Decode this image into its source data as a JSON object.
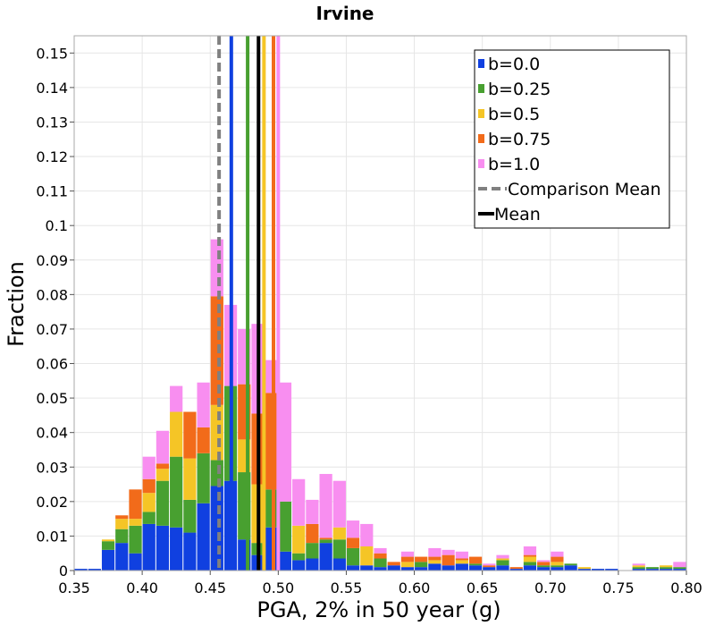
{
  "chart_data": {
    "type": "bar",
    "stacked": true,
    "title": "Irvine",
    "xlabel": "PGA, 2% in 50 year (g)",
    "ylabel": "Fraction",
    "xlim": [
      0.35,
      0.8
    ],
    "ylim": [
      0,
      0.155
    ],
    "xticks": [
      "0.35",
      "0.40",
      "0.45",
      "0.50",
      "0.55",
      "0.60",
      "0.65",
      "0.70",
      "0.75",
      "0.80"
    ],
    "xtick_values": [
      0.35,
      0.4,
      0.45,
      0.5,
      0.55,
      0.6,
      0.65,
      0.7,
      0.75,
      0.8
    ],
    "yticks": [
      "0",
      "0.01",
      "0.02",
      "0.03",
      "0.04",
      "0.05",
      "0.06",
      "0.07",
      "0.08",
      "0.09",
      "0.1",
      "0.11",
      "0.12",
      "0.13",
      "0.14",
      "0.15"
    ],
    "ytick_values": [
      0,
      0.01,
      0.02,
      0.03,
      0.04,
      0.05,
      0.06,
      0.07,
      0.08,
      0.09,
      0.1,
      0.11,
      0.12,
      0.13,
      0.14,
      0.15
    ],
    "grid": true,
    "legend_position": "top-right",
    "bin_width": 0.01,
    "bin_centers": [
      0.355,
      0.365,
      0.375,
      0.385,
      0.395,
      0.405,
      0.415,
      0.425,
      0.435,
      0.445,
      0.455,
      0.465,
      0.475,
      0.485,
      0.495,
      0.505,
      0.515,
      0.525,
      0.535,
      0.545,
      0.555,
      0.565,
      0.575,
      0.585,
      0.595,
      0.605,
      0.615,
      0.625,
      0.635,
      0.645,
      0.655,
      0.665,
      0.675,
      0.685,
      0.695,
      0.705,
      0.715,
      0.725,
      0.735,
      0.745,
      0.755,
      0.765,
      0.775,
      0.785,
      0.795
    ],
    "series": [
      {
        "name": "b=0.0",
        "color": "#1040e0",
        "values": [
          0.0005,
          0.0005,
          0.006,
          0.008,
          0.005,
          0.0135,
          0.013,
          0.0125,
          0.011,
          0.0195,
          0.0245,
          0.026,
          0.009,
          0.0045,
          0.0125,
          0.0055,
          0.003,
          0.0035,
          0.008,
          0.0035,
          0.0015,
          0.0015,
          0.001,
          0.0015,
          0.001,
          0.001,
          0.002,
          0.0015,
          0.002,
          0.0015,
          0.001,
          0.0015,
          0.0005,
          0.0015,
          0.001,
          0.001,
          0.0015,
          0.0005,
          0.0005,
          0.0005,
          0.0,
          0.0005,
          0.0005,
          0.0005,
          0.0005
        ]
      },
      {
        "name": "b=0.25",
        "color": "#48a030",
        "values": [
          0.0,
          0.0,
          0.0025,
          0.004,
          0.008,
          0.0035,
          0.013,
          0.0205,
          0.0095,
          0.0145,
          0.0075,
          0.0275,
          0.0195,
          0.0035,
          0.011,
          0.0145,
          0.002,
          0.0045,
          0.001,
          0.0055,
          0.005,
          0.0,
          0.0025,
          0.0,
          0.0,
          0.0015,
          0.0,
          0.0,
          0.0,
          0.0005,
          0.0,
          0.0015,
          0.0,
          0.001,
          0.0005,
          0.0005,
          0.0005,
          0.0,
          0.0,
          0.0,
          0.0,
          0.0005,
          0.0005,
          0.0005,
          0.0005
        ]
      },
      {
        "name": "b=0.5",
        "color": "#f5c526",
        "values": [
          0.0,
          0.0,
          0.0005,
          0.003,
          0.002,
          0.0055,
          0.0035,
          0.013,
          0.012,
          0.0,
          0.016,
          0.0,
          0.0095,
          0.017,
          0.0,
          0.0,
          0.008,
          0.0,
          0.0,
          0.0035,
          0.0,
          0.0055,
          0.0,
          0.0,
          0.0015,
          0.0,
          0.001,
          0.0,
          0.001,
          0.0,
          0.0,
          0.0005,
          0.0,
          0.0015,
          0.0,
          0.001,
          0.0,
          0.0005,
          0.0,
          0.0,
          0.0,
          0.0005,
          0.0,
          0.0005,
          0.0
        ]
      },
      {
        "name": "b=0.75",
        "color": "#f26b1a",
        "values": [
          0.0,
          0.0,
          0.0,
          0.001,
          0.0085,
          0.004,
          0.0015,
          0.0,
          0.0135,
          0.0075,
          0.0315,
          0.0,
          0.016,
          0.0205,
          0.028,
          0.0,
          0.0,
          0.0055,
          0.0005,
          0.0,
          0.003,
          0.0,
          0.0015,
          0.001,
          0.0015,
          0.0015,
          0.001,
          0.003,
          0.0005,
          0.002,
          0.0005,
          0.0,
          0.0005,
          0.0005,
          0.001,
          0.0015,
          0.0,
          0.0,
          0.0,
          0.0,
          0.0,
          0.0,
          0.0,
          0.0,
          0.0
        ]
      },
      {
        "name": "b=1.0",
        "color": "#f88ef0",
        "values": [
          0.0,
          0.0,
          0.0,
          0.0,
          0.0,
          0.0065,
          0.0095,
          0.0075,
          0.0,
          0.013,
          0.0165,
          0.0235,
          0.016,
          0.026,
          0.0095,
          0.0345,
          0.0135,
          0.007,
          0.0185,
          0.0135,
          0.005,
          0.0065,
          0.0015,
          0.0,
          0.0015,
          0.0,
          0.0025,
          0.0015,
          0.002,
          0.0,
          0.0005,
          0.001,
          0.0,
          0.0025,
          0.0005,
          0.0015,
          0.0,
          0.0,
          0.0,
          0.0,
          0.0,
          0.0005,
          0.0,
          0.0,
          0.0015
        ]
      }
    ],
    "mean_lines": [
      {
        "series": "b=0.0",
        "x": 0.4655,
        "color": "#1040e0"
      },
      {
        "series": "b=0.25",
        "x": 0.4775,
        "color": "#48a030"
      },
      {
        "series": "b=0.5",
        "x": 0.4895,
        "color": "#f5c526"
      },
      {
        "series": "b=0.75",
        "x": 0.4965,
        "color": "#f26b1a"
      },
      {
        "series": "b=1.0",
        "x": 0.5,
        "color": "#f88ef0"
      },
      {
        "series": "Comparison Mean",
        "x": 0.4565,
        "color": "#808080",
        "dashed": true
      },
      {
        "series": "Mean",
        "x": 0.4855,
        "color": "#000000"
      }
    ],
    "legend": [
      {
        "label": "b=0.0",
        "kind": "patch",
        "color": "#1040e0"
      },
      {
        "label": "b=0.25",
        "kind": "patch",
        "color": "#48a030"
      },
      {
        "label": "b=0.5",
        "kind": "patch",
        "color": "#f5c526"
      },
      {
        "label": "b=0.75",
        "kind": "patch",
        "color": "#f26b1a"
      },
      {
        "label": "b=1.0",
        "kind": "patch",
        "color": "#f88ef0"
      },
      {
        "label": "Comparison Mean",
        "kind": "dashed-line",
        "color": "#808080"
      },
      {
        "label": "Mean",
        "kind": "line",
        "color": "#000000"
      }
    ]
  }
}
